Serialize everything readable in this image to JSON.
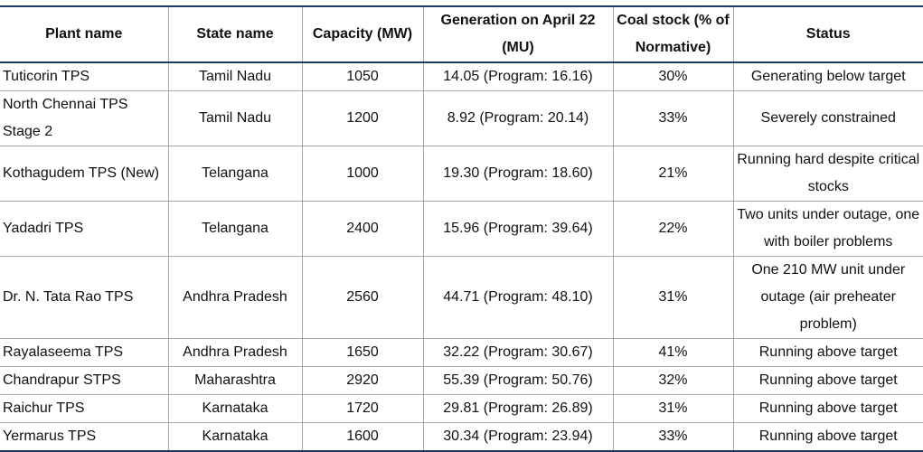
{
  "headers": {
    "plant": "Plant name",
    "state": "State name",
    "capacity": "Capacity (MW)",
    "generation": "Generation on April 22 (MU)",
    "coal": "Coal stock (% of Normative)",
    "status": "Status"
  },
  "rows": [
    {
      "plant": "Tuticorin TPS",
      "state": "Tamil Nadu",
      "capacity": "1050",
      "generation": "14.05 (Program: 16.16)",
      "coal": "30%",
      "status": "Generating below target"
    },
    {
      "plant": "North Chennai TPS Stage 2",
      "state": "Tamil Nadu",
      "capacity": "1200",
      "generation": "8.92 (Program: 20.14)",
      "coal": "33%",
      "status": "Severely constrained"
    },
    {
      "plant": "Kothagudem TPS (New)",
      "state": "Telangana",
      "capacity": "1000",
      "generation": "19.30 (Program: 18.60)",
      "coal": "21%",
      "status": "Running hard despite critical stocks"
    },
    {
      "plant": "Yadadri TPS",
      "state": "Telangana",
      "capacity": "2400",
      "generation": "15.96 (Program: 39.64)",
      "coal": "22%",
      "status": "Two units under outage, one with boiler problems"
    },
    {
      "plant": "Dr. N. Tata Rao TPS",
      "state": "Andhra Pradesh",
      "capacity": "2560",
      "generation": "44.71 (Program: 48.10)",
      "coal": "31%",
      "status": "One 210 MW unit under outage (air preheater problem)"
    },
    {
      "plant": "Rayalaseema TPS",
      "state": "Andhra Pradesh",
      "capacity": "1650",
      "generation": "32.22 (Program: 30.67)",
      "coal": "41%",
      "status": "Running above target"
    },
    {
      "plant": "Chandrapur STPS",
      "state": "Maharashtra",
      "capacity": "2920",
      "generation": "55.39 (Program: 50.76)",
      "coal": "32%",
      "status": "Running above target"
    },
    {
      "plant": "Raichur TPS",
      "state": "Karnataka",
      "capacity": "1720",
      "generation": "29.81 (Program: 26.89)",
      "coal": "31%",
      "status": "Running above target"
    },
    {
      "plant": "Yermarus TPS",
      "state": "Karnataka",
      "capacity": "1600",
      "generation": "30.34 (Program: 23.94)",
      "coal": "33%",
      "status": "Running above target"
    }
  ]
}
